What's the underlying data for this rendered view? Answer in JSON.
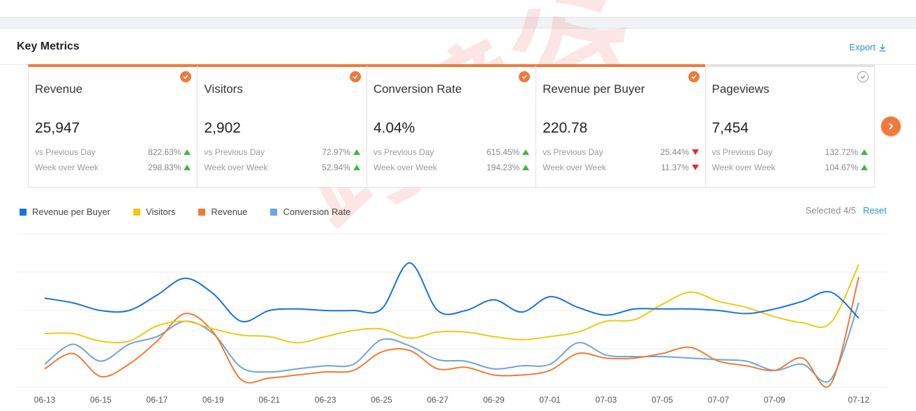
{
  "panel": {
    "title": "Key Metrics",
    "export_label": "Export"
  },
  "cards": [
    {
      "title": "Revenue",
      "value": "25,947",
      "selected": true,
      "cmp1_label": "vs Previous Day",
      "cmp1_value": "822.63%",
      "cmp1_dir": "up",
      "cmp2_label": "Week over Week",
      "cmp2_value": "298.83%",
      "cmp2_dir": "up"
    },
    {
      "title": "Visitors",
      "value": "2,902",
      "selected": true,
      "cmp1_label": "vs Previous Day",
      "cmp1_value": "72.97%",
      "cmp1_dir": "up",
      "cmp2_label": "Week over Week",
      "cmp2_value": "52.94%",
      "cmp2_dir": "up"
    },
    {
      "title": "Conversion Rate",
      "value": "4.04%",
      "selected": true,
      "cmp1_label": "vs Previous Day",
      "cmp1_value": "615.45%",
      "cmp1_dir": "up",
      "cmp2_label": "Week over Week",
      "cmp2_value": "194.23%",
      "cmp2_dir": "up"
    },
    {
      "title": "Revenue per Buyer",
      "value": "220.78",
      "selected": true,
      "cmp1_label": "vs Previous Day",
      "cmp1_value": "25.44%",
      "cmp1_dir": "down",
      "cmp2_label": "Week over Week",
      "cmp2_value": "11.37%",
      "cmp2_dir": "down"
    },
    {
      "title": "Pageviews",
      "value": "7,454",
      "selected": false,
      "cmp1_label": "vs Previous Day",
      "cmp1_value": "132.72%",
      "cmp1_dir": "up",
      "cmp2_label": "Week over Week",
      "cmp2_value": "104.67%",
      "cmp2_dir": "up"
    }
  ],
  "legend": [
    {
      "name": "Revenue per Buyer",
      "color": "#1a73d9"
    },
    {
      "name": "Visitors",
      "color": "#f2c811"
    },
    {
      "name": "Revenue",
      "color": "#f07b33"
    },
    {
      "name": "Conversion Rate",
      "color": "#6aa6e0"
    }
  ],
  "selection": {
    "label": "Selected",
    "count": "4/5",
    "reset_label": "Reset"
  },
  "watermark": "跨境谷",
  "chart_data": {
    "type": "line",
    "x": [
      "06-13",
      "06-14",
      "06-15",
      "06-16",
      "06-17",
      "06-18",
      "06-19",
      "06-20",
      "06-21",
      "06-22",
      "06-23",
      "06-24",
      "06-25",
      "06-26",
      "06-27",
      "06-28",
      "06-29",
      "06-30",
      "07-01",
      "07-02",
      "07-03",
      "07-04",
      "07-05",
      "07-06",
      "07-07",
      "07-08",
      "07-09",
      "07-10",
      "07-11",
      "07-12"
    ],
    "x_tick_labels": [
      "06-13",
      "06-15",
      "06-17",
      "06-19",
      "06-21",
      "06-23",
      "06-25",
      "06-27",
      "06-29",
      "07-01",
      "07-03",
      "07-05",
      "07-07",
      "07-09",
      "07-12"
    ],
    "y_range": [
      0,
      100
    ],
    "grid": true,
    "series": [
      {
        "name": "Revenue per Buyer",
        "color": "#1a73d9",
        "values": [
          58,
          55,
          50,
          50,
          60,
          71,
          61,
          43,
          50,
          51,
          50,
          50,
          51,
          81,
          50,
          50,
          57,
          49,
          59,
          52,
          47,
          51,
          51,
          51,
          50,
          48,
          51,
          56,
          62,
          45
        ]
      },
      {
        "name": "Visitors",
        "color": "#f2c811",
        "values": [
          35,
          35,
          30,
          30,
          40,
          43,
          38,
          34,
          33,
          29,
          33,
          37,
          38,
          32,
          36,
          36,
          33,
          31,
          33,
          36,
          43,
          44,
          54,
          62,
          56,
          52,
          46,
          42,
          42,
          80
        ]
      },
      {
        "name": "Revenue",
        "color": "#f07b33",
        "values": [
          12,
          22,
          7,
          15,
          30,
          48,
          36,
          5,
          6,
          8,
          10,
          11,
          23,
          24,
          12,
          13,
          8,
          8,
          11,
          22,
          19,
          19,
          22,
          26,
          17,
          14,
          11,
          19,
          2,
          72
        ]
      },
      {
        "name": "Conversion Rate",
        "color": "#6aa6e0",
        "values": [
          15,
          28,
          17,
          28,
          33,
          43,
          35,
          13,
          10,
          12,
          14,
          15,
          31,
          27,
          18,
          17,
          12,
          14,
          15,
          29,
          21,
          20,
          20,
          19,
          18,
          17,
          11,
          15,
          5,
          55
        ]
      }
    ]
  }
}
